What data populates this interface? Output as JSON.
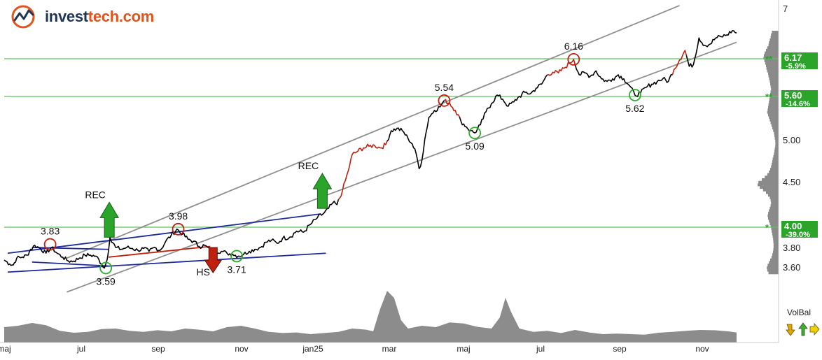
{
  "brand": {
    "name_prefix": "invest",
    "name_suffix": "tech.com",
    "accent": "#e2541c",
    "dark": "#1f3553"
  },
  "volbal": {
    "label": "VolBal"
  },
  "chart_data": {
    "type": "line",
    "months": [
      "maj",
      "jul",
      "sep",
      "nov",
      "jan25",
      "mar",
      "maj",
      "jul",
      "sep",
      "nov"
    ],
    "y_ticks": [
      "7",
      "5.00",
      "4.50",
      "3.80",
      "3.60"
    ],
    "y_scale": "log",
    "ylim": [
      3.5,
      7.1
    ],
    "price_series": [
      [
        0,
        3.67
      ],
      [
        8,
        3.63
      ],
      [
        13,
        3.62
      ],
      [
        18,
        3.69
      ],
      [
        26,
        3.7
      ],
      [
        33,
        3.72
      ],
      [
        38,
        3.78
      ],
      [
        44,
        3.82
      ],
      [
        52,
        3.79
      ],
      [
        60,
        3.74
      ],
      [
        68,
        3.8
      ],
      [
        76,
        3.74
      ],
      [
        84,
        3.7
      ],
      [
        92,
        3.66
      ],
      [
        100,
        3.66
      ],
      [
        108,
        3.69
      ],
      [
        116,
        3.72
      ],
      [
        124,
        3.72
      ],
      [
        132,
        3.71
      ],
      [
        140,
        3.63
      ],
      [
        144,
        3.59
      ],
      [
        148,
        3.68
      ],
      [
        152,
        3.9
      ],
      [
        160,
        3.8
      ],
      [
        168,
        3.78
      ],
      [
        176,
        3.8
      ],
      [
        184,
        3.79
      ],
      [
        192,
        3.77
      ],
      [
        200,
        3.79
      ],
      [
        208,
        3.76
      ],
      [
        216,
        3.8
      ],
      [
        224,
        3.77
      ],
      [
        232,
        3.86
      ],
      [
        240,
        3.92
      ],
      [
        248,
        3.98
      ],
      [
        256,
        3.93
      ],
      [
        264,
        3.88
      ],
      [
        272,
        3.86
      ],
      [
        280,
        3.81
      ],
      [
        288,
        3.82
      ],
      [
        296,
        3.77
      ],
      [
        304,
        3.76
      ],
      [
        312,
        3.76
      ],
      [
        320,
        3.74
      ],
      [
        328,
        3.73
      ],
      [
        336,
        3.71
      ],
      [
        344,
        3.73
      ],
      [
        352,
        3.76
      ],
      [
        360,
        3.78
      ],
      [
        368,
        3.8
      ],
      [
        376,
        3.85
      ],
      [
        384,
        3.87
      ],
      [
        392,
        3.84
      ],
      [
        400,
        3.89
      ],
      [
        410,
        3.9
      ],
      [
        420,
        3.96
      ],
      [
        430,
        3.95
      ],
      [
        440,
        4.03
      ],
      [
        450,
        4.1
      ],
      [
        458,
        4.14
      ],
      [
        466,
        4.2
      ],
      [
        472,
        4.26
      ],
      [
        478,
        4.24
      ],
      [
        486,
        4.4
      ],
      [
        494,
        4.62
      ],
      [
        500,
        4.82
      ],
      [
        508,
        4.86
      ],
      [
        516,
        4.9
      ],
      [
        524,
        4.92
      ],
      [
        532,
        4.93
      ],
      [
        540,
        4.9
      ],
      [
        548,
        4.94
      ],
      [
        556,
        5.12
      ],
      [
        564,
        5.15
      ],
      [
        572,
        5.12
      ],
      [
        580,
        5.02
      ],
      [
        586,
        4.95
      ],
      [
        592,
        4.82
      ],
      [
        596,
        4.65
      ],
      [
        600,
        4.75
      ],
      [
        604,
        5.0
      ],
      [
        610,
        5.3
      ],
      [
        618,
        5.4
      ],
      [
        626,
        5.45
      ],
      [
        632,
        5.54
      ],
      [
        640,
        5.5
      ],
      [
        648,
        5.4
      ],
      [
        656,
        5.25
      ],
      [
        664,
        5.17
      ],
      [
        670,
        5.12
      ],
      [
        676,
        5.09
      ],
      [
        684,
        5.2
      ],
      [
        692,
        5.38
      ],
      [
        700,
        5.5
      ],
      [
        708,
        5.62
      ],
      [
        716,
        5.56
      ],
      [
        724,
        5.46
      ],
      [
        732,
        5.52
      ],
      [
        740,
        5.6
      ],
      [
        748,
        5.66
      ],
      [
        756,
        5.64
      ],
      [
        764,
        5.72
      ],
      [
        772,
        5.78
      ],
      [
        780,
        5.92
      ],
      [
        788,
        5.96
      ],
      [
        796,
        5.95
      ],
      [
        804,
        6.02
      ],
      [
        812,
        6.1
      ],
      [
        818,
        6.16
      ],
      [
        826,
        5.92
      ],
      [
        834,
        5.95
      ],
      [
        842,
        5.9
      ],
      [
        850,
        5.98
      ],
      [
        858,
        5.86
      ],
      [
        866,
        5.82
      ],
      [
        874,
        5.86
      ],
      [
        882,
        5.92
      ],
      [
        890,
        5.86
      ],
      [
        898,
        5.76
      ],
      [
        906,
        5.62
      ],
      [
        914,
        5.65
      ],
      [
        922,
        5.73
      ],
      [
        930,
        5.78
      ],
      [
        938,
        5.82
      ],
      [
        946,
        5.86
      ],
      [
        954,
        5.82
      ],
      [
        962,
        6.0
      ],
      [
        970,
        6.15
      ],
      [
        978,
        6.3
      ],
      [
        984,
        6.05
      ],
      [
        990,
        6.08
      ],
      [
        998,
        6.5
      ],
      [
        1006,
        6.38
      ],
      [
        1014,
        6.4
      ],
      [
        1022,
        6.5
      ],
      [
        1030,
        6.52
      ],
      [
        1038,
        6.55
      ],
      [
        1046,
        6.62
      ],
      [
        1052,
        6.58
      ]
    ],
    "red_segments": [
      [
        480,
        548
      ],
      [
        632,
        652
      ],
      [
        780,
        818
      ],
      [
        960,
        978
      ]
    ],
    "horizontal_levels": [
      {
        "value": 6.17,
        "pct": "-5.9%",
        "label": "6.17",
        "strength": "**"
      },
      {
        "value": 5.6,
        "pct": "-14.6%",
        "label": "5.60",
        "strength": "**"
      },
      {
        "value": 4.0,
        "pct": "-39.0%",
        "label": "4.00",
        "strength": "*"
      }
    ],
    "trend_channel": {
      "upper": [
        [
          90,
          3.69
        ],
        [
          970,
          7.05
        ]
      ],
      "lower": [
        [
          90,
          3.36
        ],
        [
          1052,
          6.43
        ]
      ]
    },
    "early_channels": [
      {
        "from": [
          5,
          3.74
        ],
        "to": [
          455,
          4.14
        ],
        "color": "#1d2a9c"
      },
      {
        "from": [
          5,
          3.55
        ],
        "to": [
          462,
          3.74
        ],
        "color": "#1d2a9c"
      },
      {
        "from": [
          40,
          3.8
        ],
        "to": [
          150,
          3.78
        ],
        "color": "#1d2a9c"
      },
      {
        "from": [
          40,
          3.65
        ],
        "to": [
          150,
          3.61
        ],
        "color": "#1d2a9c"
      },
      {
        "from": [
          150,
          3.7
        ],
        "to": [
          296,
          3.81
        ],
        "color": "#c0210e"
      }
    ],
    "turning_points": [
      {
        "x": 66,
        "value": 3.83,
        "type": "top",
        "label": "3.83"
      },
      {
        "x": 146,
        "value": 3.59,
        "type": "bottom",
        "label": "3.59"
      },
      {
        "x": 250,
        "value": 3.98,
        "type": "top",
        "label": "3.98"
      },
      {
        "x": 334,
        "value": 3.71,
        "type": "bottom",
        "label": "3.71"
      },
      {
        "x": 632,
        "value": 5.54,
        "type": "top",
        "label": "5.54"
      },
      {
        "x": 676,
        "value": 5.09,
        "type": "bottom",
        "label": "5.09"
      },
      {
        "x": 818,
        "value": 6.16,
        "type": "top",
        "label": "6.16"
      },
      {
        "x": 906,
        "value": 5.62,
        "type": "bottom",
        "label": "5.62"
      }
    ],
    "signals": [
      {
        "x": 151,
        "value": 3.9,
        "direction": "up",
        "label": "REC"
      },
      {
        "x": 300,
        "value": 3.77,
        "direction": "down",
        "label": "HS"
      },
      {
        "x": 457,
        "value": 4.2,
        "direction": "up",
        "label": "REC"
      }
    ],
    "volume_profile": [
      0.32,
      0.36,
      0.38,
      0.42,
      0.46,
      0.48,
      0.54,
      0.6,
      0.66,
      0.7,
      0.72,
      0.68,
      0.64,
      0.6,
      0.58,
      0.55,
      0.5,
      0.48,
      0.45,
      0.42,
      0.4,
      0.38,
      0.36,
      0.38,
      0.4,
      0.42,
      0.44,
      0.46,
      0.48,
      0.5,
      0.52,
      0.54,
      0.5,
      0.46,
      0.42,
      0.38,
      0.34,
      0.3,
      0.26,
      0.22,
      0.2,
      0.18,
      0.16,
      0.15,
      0.16,
      0.18,
      0.2,
      0.22,
      0.25,
      0.28,
      0.3,
      0.33,
      0.36,
      0.4,
      0.46,
      0.54,
      0.66,
      0.8,
      0.96,
      1.0,
      0.9,
      0.74,
      0.6,
      0.5,
      0.42,
      0.38,
      0.36,
      0.38,
      0.42,
      0.46,
      0.5,
      0.52,
      0.5,
      0.46,
      0.42,
      0.38,
      0.35,
      0.33,
      0.3,
      0.28,
      0.26,
      0.25,
      0.24,
      0.24,
      0.25,
      0.27,
      0.3,
      0.34,
      0.4,
      0.46,
      0.52,
      0.56,
      0.54,
      0.48
    ],
    "volume_series": [
      [
        0,
        0.55
      ],
      [
        20,
        0.6
      ],
      [
        40,
        0.7
      ],
      [
        60,
        0.62
      ],
      [
        80,
        0.42
      ],
      [
        100,
        0.35
      ],
      [
        120,
        0.38
      ],
      [
        140,
        0.48
      ],
      [
        160,
        0.5
      ],
      [
        180,
        0.42
      ],
      [
        200,
        0.38
      ],
      [
        220,
        0.44
      ],
      [
        240,
        0.4
      ],
      [
        260,
        0.5
      ],
      [
        280,
        0.46
      ],
      [
        300,
        0.4
      ],
      [
        320,
        0.55
      ],
      [
        340,
        0.6
      ],
      [
        360,
        0.5
      ],
      [
        380,
        0.38
      ],
      [
        400,
        0.34
      ],
      [
        420,
        0.36
      ],
      [
        440,
        0.3
      ],
      [
        460,
        0.34
      ],
      [
        480,
        0.38
      ],
      [
        500,
        0.5
      ],
      [
        520,
        0.46
      ],
      [
        530,
        0.4
      ],
      [
        540,
        1.2
      ],
      [
        550,
        1.85
      ],
      [
        560,
        1.6
      ],
      [
        570,
        0.8
      ],
      [
        580,
        0.5
      ],
      [
        600,
        0.6
      ],
      [
        620,
        0.55
      ],
      [
        640,
        0.72
      ],
      [
        660,
        0.68
      ],
      [
        680,
        0.56
      ],
      [
        700,
        0.5
      ],
      [
        712,
        0.9
      ],
      [
        720,
        1.6
      ],
      [
        728,
        1.1
      ],
      [
        740,
        0.5
      ],
      [
        760,
        0.38
      ],
      [
        780,
        0.42
      ],
      [
        800,
        0.34
      ],
      [
        820,
        0.45
      ],
      [
        840,
        0.36
      ],
      [
        860,
        0.3
      ],
      [
        880,
        0.32
      ],
      [
        900,
        0.3
      ],
      [
        920,
        0.28
      ],
      [
        940,
        0.35
      ],
      [
        960,
        0.38
      ],
      [
        980,
        0.42
      ],
      [
        1000,
        0.45
      ],
      [
        1020,
        0.44
      ],
      [
        1040,
        0.4
      ],
      [
        1052,
        0.36
      ]
    ]
  }
}
